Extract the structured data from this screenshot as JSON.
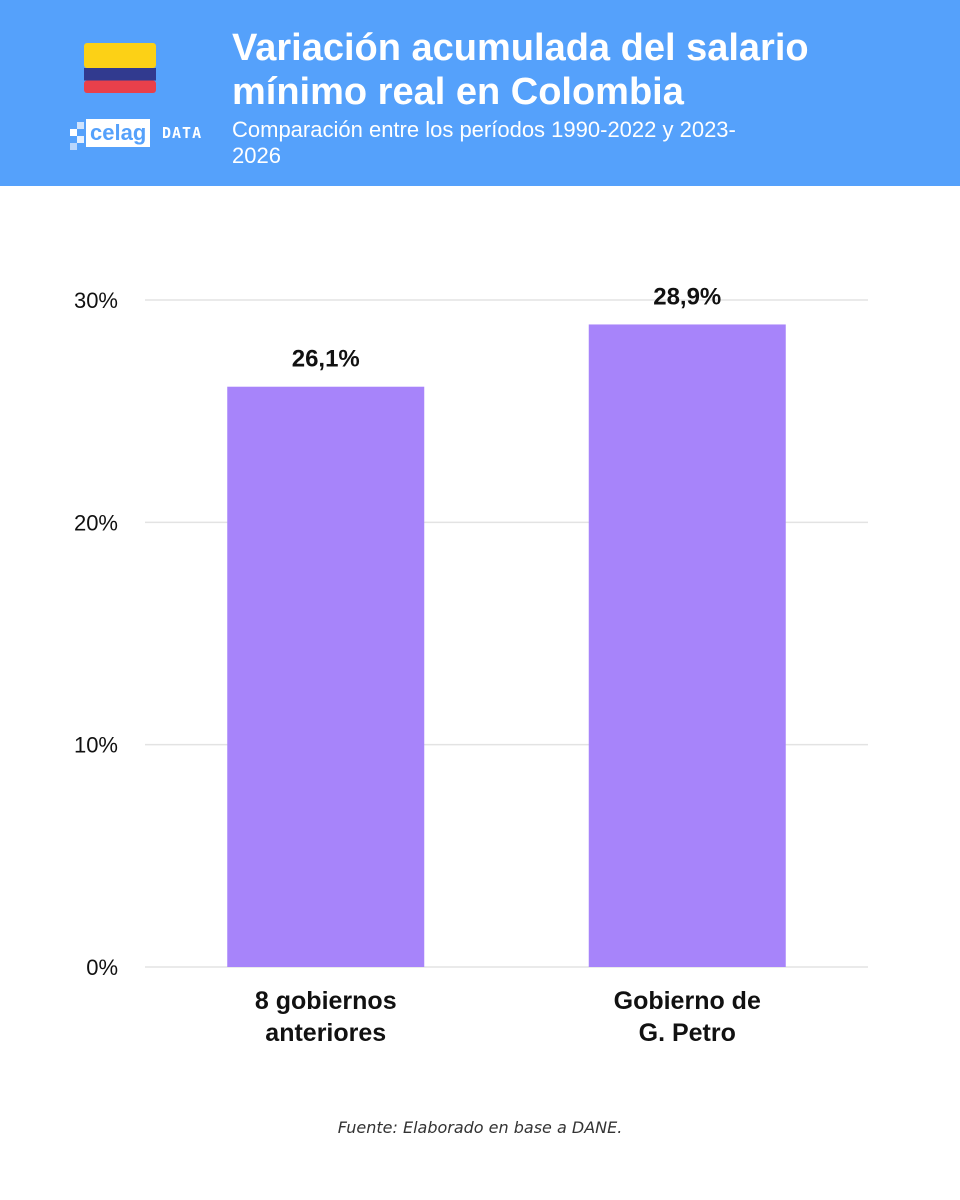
{
  "header": {
    "title": "Variación acumulada del salario mínimo real en Colombia",
    "subtitle": "Comparación entre los períodos 1990-2022 y 2023-2026",
    "logo_word": "celag",
    "logo_suffix": "DATA",
    "flag_colors": [
      "#fcd116",
      "#313a8f",
      "#e8404b"
    ],
    "brand_color": "#55a1fb"
  },
  "chart_data": {
    "type": "bar",
    "categories": [
      [
        "8 gobiernos",
        "anteriores"
      ],
      [
        "Gobierno de",
        "G. Petro"
      ]
    ],
    "values": [
      26.1,
      28.9
    ],
    "data_labels": [
      "26,1%",
      "28,9%"
    ],
    "y_ticks": [
      0,
      10,
      20,
      30
    ],
    "y_tick_labels": [
      "0%",
      "10%",
      "20%",
      "30%"
    ],
    "ylim": [
      0,
      30
    ],
    "grid": true,
    "bar_color": "#a784fa",
    "title": "",
    "xlabel": "",
    "ylabel": ""
  },
  "footer": {
    "source": "Fuente: Elaborado en base a DANE."
  }
}
